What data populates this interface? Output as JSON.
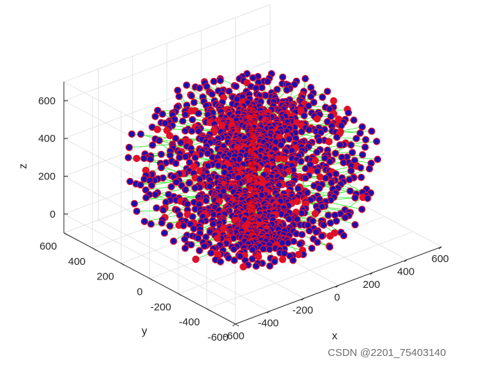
{
  "chart_data": {
    "type": "scatter3d",
    "title": "",
    "xlabel": "x",
    "ylabel": "y",
    "zlabel": "z",
    "xlim": [
      -600,
      600
    ],
    "ylim": [
      -600,
      600
    ],
    "zlim": [
      -100,
      600
    ],
    "xticks": [
      "-600",
      "-400",
      "-200",
      "0",
      "200",
      "400",
      "600"
    ],
    "yticks": [
      "600",
      "400",
      "200",
      "0",
      "-200",
      "-400",
      "-600"
    ],
    "zticks": [
      "600",
      "400",
      "200",
      "0"
    ],
    "grid": true,
    "box": true,
    "view": "isometric 3-D (azimuth -37.5, elevation 30)",
    "point_style": {
      "face": "#1a0fb0",
      "edge": "#e0102a",
      "link": "#33ee33",
      "axis_nodes": "#e0102a"
    },
    "structure": {
      "description_units": "data units",
      "central_axis": {
        "x": 0,
        "y": 0,
        "z_from": -100,
        "z_to": 600
      },
      "outer_radius_approx": 560,
      "radial_spokes": "blue nodes on many radial branches around a vertical red node column"
    }
  },
  "watermark": "CSDN @2201_75403140"
}
